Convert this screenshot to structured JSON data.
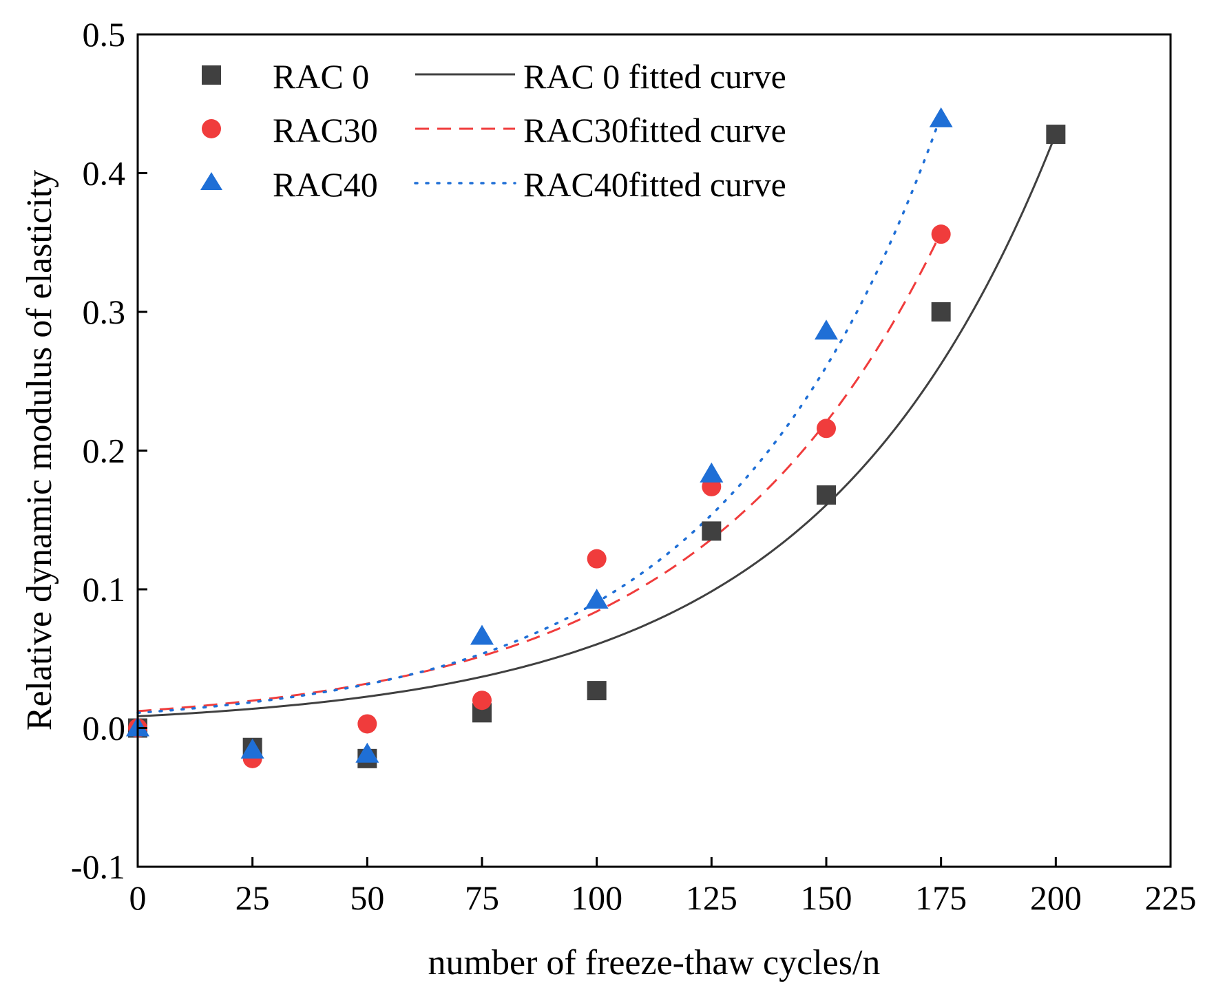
{
  "chart_data": {
    "type": "scatter",
    "title": "",
    "xlabel": "number of freeze-thaw cycles/n",
    "ylabel": "Relative dynamic modulus of elasticity",
    "xlim": [
      0,
      225
    ],
    "ylim": [
      -0.1,
      0.5
    ],
    "x_ticks": [
      0,
      25,
      50,
      75,
      100,
      125,
      150,
      175,
      200,
      225
    ],
    "x_tick_labels": [
      "0",
      "25",
      "50",
      "75",
      "100",
      "125",
      "150",
      "175",
      "200",
      "225"
    ],
    "y_ticks": [
      -0.1,
      0.0,
      0.1,
      0.2,
      0.3,
      0.4,
      0.5
    ],
    "y_tick_labels": [
      "-0.1",
      "0.0",
      "0.1",
      "0.2",
      "0.3",
      "0.4",
      "0.5"
    ],
    "grid": false,
    "legend_position": "top-left",
    "series": [
      {
        "name": "RAC 0",
        "marker": "square",
        "color": "#404040",
        "x": [
          0,
          25,
          50,
          75,
          100,
          125,
          150,
          175,
          200
        ],
        "y": [
          0.0,
          -0.014,
          -0.022,
          0.011,
          0.027,
          0.142,
          0.168,
          0.3,
          0.428
        ],
        "fit_name": "RAC 0 fitted curve",
        "fit_style": "solid",
        "fit_equation": {
          "a": 0.0085,
          "b": 0.0196
        },
        "fit_range": [
          0,
          200
        ]
      },
      {
        "name": "RAC30",
        "marker": "circle",
        "color": "#f03c3c",
        "x": [
          0,
          25,
          50,
          75,
          100,
          125,
          150,
          175
        ],
        "y": [
          0.0,
          -0.022,
          0.003,
          0.02,
          0.122,
          0.174,
          0.216,
          0.356
        ],
        "fit_name": "RAC30fitted curve",
        "fit_style": "dashed",
        "fit_equation": {
          "a": 0.0122,
          "b": 0.0193
        },
        "fit_range": [
          0,
          175
        ]
      },
      {
        "name": "RAC40",
        "marker": "triangle",
        "color": "#1f6fd6",
        "x": [
          0,
          25,
          50,
          75,
          100,
          125,
          150,
          175
        ],
        "y": [
          0.0,
          -0.016,
          -0.019,
          0.066,
          0.092,
          0.183,
          0.286,
          0.439
        ],
        "fit_name": "RAC40fitted curve",
        "fit_style": "dotted",
        "fit_equation": {
          "a": 0.011,
          "b": 0.0211
        },
        "fit_range": [
          0,
          175
        ]
      }
    ]
  }
}
